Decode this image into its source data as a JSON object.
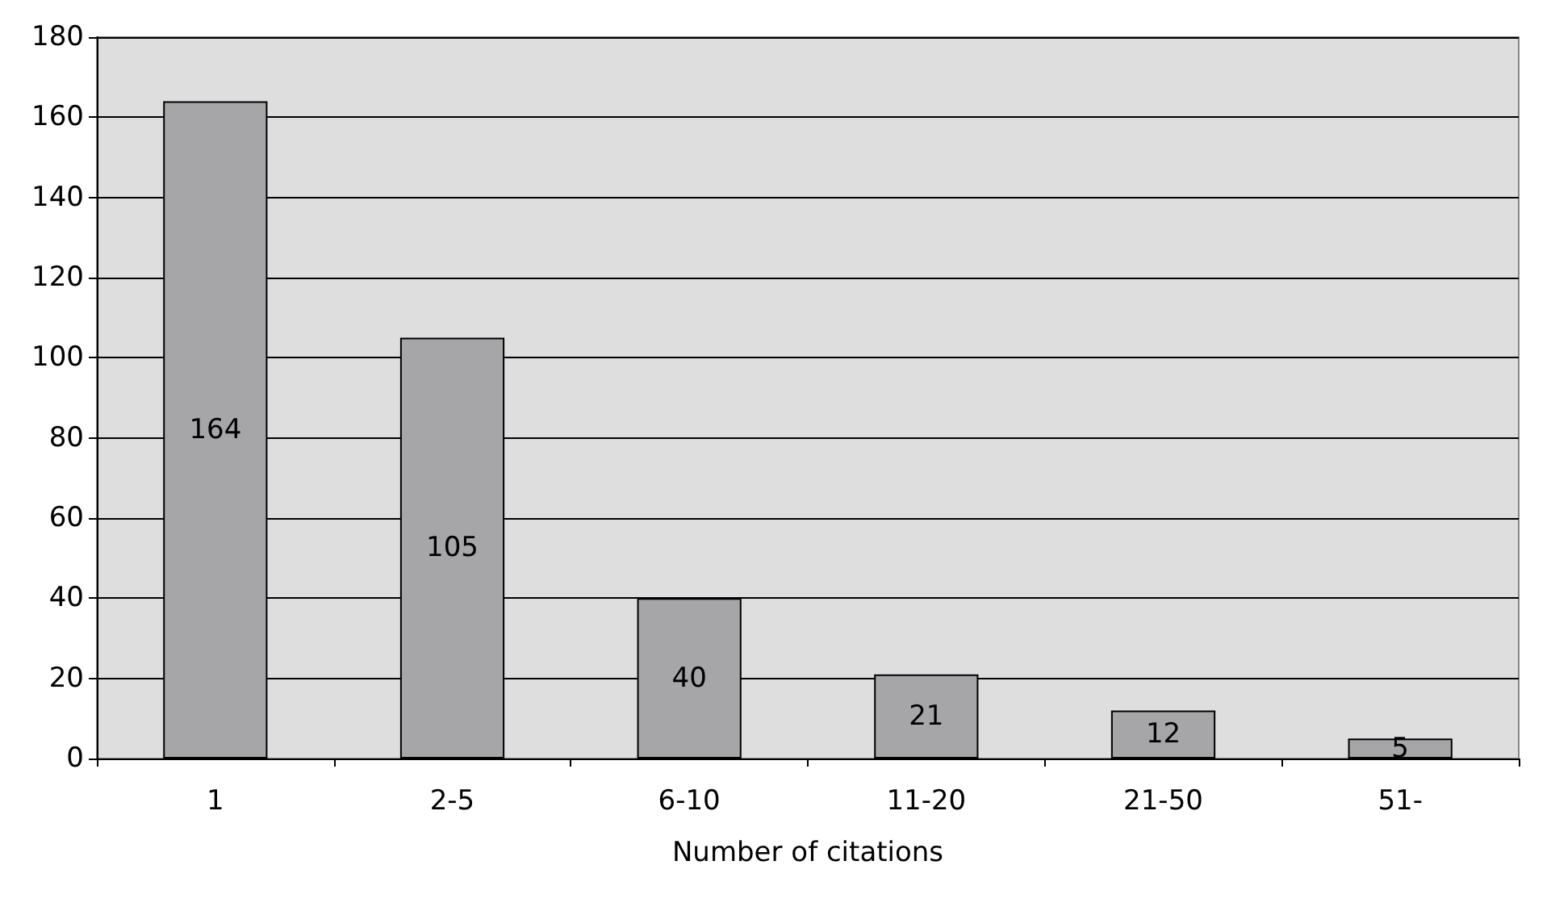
{
  "chart_data": {
    "type": "bar",
    "xlabel": "Number of citations",
    "categories": [
      "1",
      "2-5",
      "6-10",
      "11-20",
      "21-50",
      "51-"
    ],
    "values": [
      164,
      105,
      40,
      21,
      12,
      5
    ],
    "color": "#a6a6a8",
    "ylim": [
      0,
      180
    ],
    "yticks": [
      0,
      20,
      40,
      60,
      80,
      100,
      120,
      140,
      160,
      180
    ],
    "grid": "y",
    "data_labels": true
  }
}
